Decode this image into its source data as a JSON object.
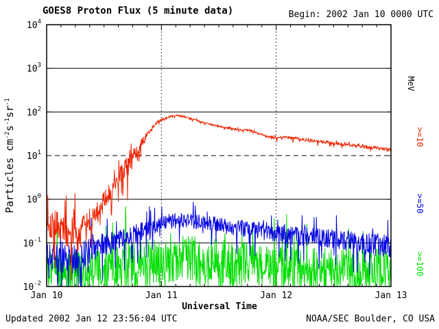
{
  "header": {
    "title": "GOES8 Proton Flux (5 minute data)",
    "begin_label": "Begin: 2002 Jan 10 0000 UTC"
  },
  "footer": {
    "updated": "Updated 2002 Jan 12 23:56:04 UTC",
    "source": "NOAA/SEC Boulder, CO USA"
  },
  "chart_data": {
    "type": "line",
    "title": "GOES8 Proton Flux (5 minute data)",
    "xlabel": "Universal Time",
    "ylabel": "Particles cm-2 s-1 sr-1",
    "ylabel_rich": [
      {
        "t": "Particles cm"
      },
      {
        "t": "-2",
        "sup": true
      },
      {
        "t": "s"
      },
      {
        "t": "-1",
        "sup": true
      },
      {
        "t": "sr"
      },
      {
        "t": "-1",
        "sup": true
      }
    ],
    "right_axis_label": "MeV",
    "y_scale": "log",
    "ylim": [
      0.01,
      10000
    ],
    "y_exponents": [
      4,
      3,
      2,
      1,
      0,
      -1,
      -2
    ],
    "xlim_days": [
      0,
      3
    ],
    "x_minor_step": 0.125,
    "x_ticks": [
      {
        "day": 0,
        "label": "Jan 10"
      },
      {
        "day": 1,
        "label": "Jan 11"
      },
      {
        "day": 2,
        "label": "Jan 12"
      },
      {
        "day": 3,
        "label": "Jan 13"
      }
    ],
    "gridlines": {
      "solid_exponents": [
        3,
        2,
        0,
        -1
      ],
      "dashed_exponents": [
        1
      ],
      "vertical_dotted_days": [
        1,
        2
      ]
    },
    "noise": {
      "spike_down_prob": 0.06,
      "spike_down_mult": 2.2,
      "spike_up_prob": 0.04,
      "spike_up_mult": 1.6
    },
    "series": [
      {
        "name": ">=10",
        "color": "#ed2200",
        "points": [
          [
            0.0,
            0.3,
            0.35
          ],
          [
            0.08,
            0.26,
            0.35
          ],
          [
            0.16,
            0.2,
            0.4
          ],
          [
            0.24,
            0.15,
            0.5
          ],
          [
            0.32,
            0.2,
            0.4
          ],
          [
            0.4,
            0.35,
            0.3
          ],
          [
            0.48,
            0.7,
            0.25
          ],
          [
            0.56,
            1.6,
            0.22
          ],
          [
            0.62,
            3.0,
            0.2
          ],
          [
            0.68,
            5.5,
            0.25
          ],
          [
            0.73,
            7.5,
            0.3
          ],
          [
            0.78,
            12,
            0.15
          ],
          [
            0.83,
            20,
            0.1
          ],
          [
            0.88,
            32,
            0.06
          ],
          [
            0.93,
            48,
            0.04
          ],
          [
            0.98,
            62,
            0.03
          ],
          [
            1.03,
            72,
            0.025
          ],
          [
            1.08,
            78,
            0.02
          ],
          [
            1.13,
            84,
            0.02
          ],
          [
            1.18,
            80,
            0.02
          ],
          [
            1.25,
            70,
            0.02
          ],
          [
            1.32,
            62,
            0.02
          ],
          [
            1.4,
            54,
            0.02
          ],
          [
            1.5,
            47,
            0.02
          ],
          [
            1.6,
            42,
            0.02
          ],
          [
            1.7,
            38,
            0.02
          ],
          [
            1.76,
            39,
            0.02
          ],
          [
            1.82,
            34,
            0.02
          ],
          [
            1.9,
            29,
            0.025
          ],
          [
            2.0,
            25,
            0.03
          ],
          [
            2.08,
            26,
            0.035
          ],
          [
            2.16,
            25,
            0.035
          ],
          [
            2.25,
            23,
            0.035
          ],
          [
            2.35,
            21.5,
            0.035
          ],
          [
            2.45,
            20,
            0.035
          ],
          [
            2.55,
            18.5,
            0.035
          ],
          [
            2.65,
            17,
            0.035
          ],
          [
            2.75,
            16,
            0.04
          ],
          [
            2.85,
            15,
            0.04
          ],
          [
            3.0,
            13.5,
            0.045
          ]
        ]
      },
      {
        "name": ">=50",
        "color": "#0000e0",
        "points": [
          [
            0.0,
            0.05,
            0.3
          ],
          [
            0.1,
            0.045,
            0.32
          ],
          [
            0.2,
            0.04,
            0.35
          ],
          [
            0.3,
            0.048,
            0.35
          ],
          [
            0.4,
            0.065,
            0.3
          ],
          [
            0.5,
            0.085,
            0.28
          ],
          [
            0.6,
            0.105,
            0.26
          ],
          [
            0.7,
            0.13,
            0.25
          ],
          [
            0.8,
            0.17,
            0.22
          ],
          [
            0.9,
            0.22,
            0.2
          ],
          [
            1.0,
            0.28,
            0.18
          ],
          [
            1.1,
            0.32,
            0.18
          ],
          [
            1.2,
            0.33,
            0.18
          ],
          [
            1.3,
            0.3,
            0.18
          ],
          [
            1.45,
            0.27,
            0.18
          ],
          [
            1.6,
            0.235,
            0.19
          ],
          [
            1.75,
            0.21,
            0.2
          ],
          [
            1.9,
            0.18,
            0.2
          ],
          [
            2.05,
            0.155,
            0.21
          ],
          [
            2.2,
            0.14,
            0.22
          ],
          [
            2.4,
            0.125,
            0.23
          ],
          [
            2.6,
            0.11,
            0.24
          ],
          [
            2.8,
            0.095,
            0.26
          ],
          [
            3.0,
            0.085,
            0.27
          ]
        ]
      },
      {
        "name": ">=100",
        "color": "#00dd00",
        "points": [
          [
            0.0,
            0.024,
            0.45
          ],
          [
            0.2,
            0.022,
            0.45
          ],
          [
            0.4,
            0.024,
            0.5
          ],
          [
            0.6,
            0.028,
            0.52
          ],
          [
            0.8,
            0.034,
            0.55
          ],
          [
            1.0,
            0.04,
            0.55
          ],
          [
            1.2,
            0.042,
            0.55
          ],
          [
            1.4,
            0.039,
            0.55
          ],
          [
            1.6,
            0.035,
            0.52
          ],
          [
            1.8,
            0.031,
            0.5
          ],
          [
            2.0,
            0.028,
            0.5
          ],
          [
            2.2,
            0.027,
            0.5
          ],
          [
            2.4,
            0.026,
            0.5
          ],
          [
            2.6,
            0.025,
            0.5
          ],
          [
            2.8,
            0.024,
            0.5
          ],
          [
            3.0,
            0.023,
            0.5
          ]
        ]
      }
    ]
  }
}
